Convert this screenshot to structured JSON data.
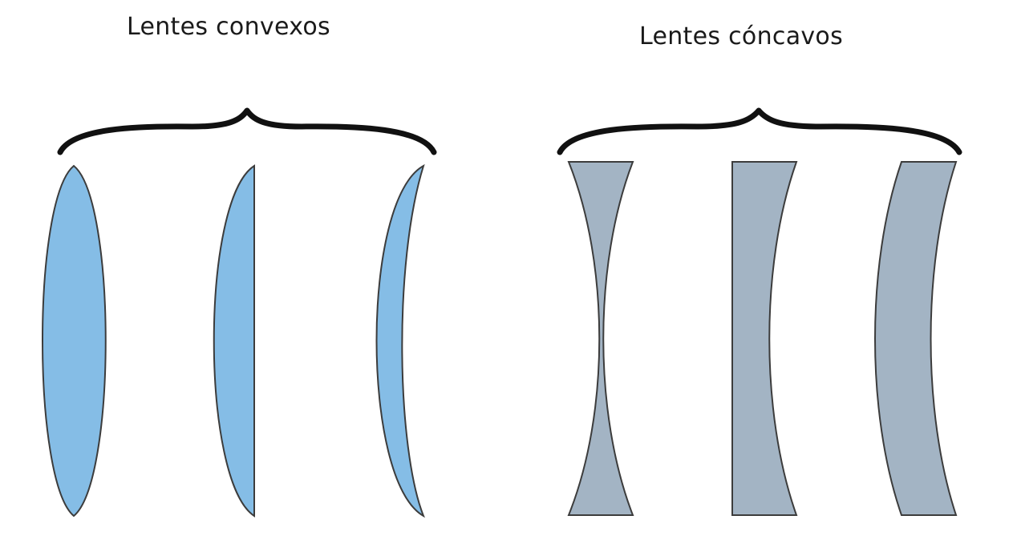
{
  "groups": {
    "convex": {
      "title": "Lentes convexos",
      "fill": "#85bde6",
      "lenses": [
        "biconvex-lens",
        "plano-convex-lens",
        "convex-meniscus-lens"
      ]
    },
    "concave": {
      "title": "Lentes cóncavos",
      "fill": "#a3b4c4",
      "lenses": [
        "biconcave-lens",
        "plano-concave-lens",
        "concave-meniscus-lens"
      ]
    }
  },
  "colors": {
    "outline": "#3c3c3c",
    "brace": "#111111",
    "background": "#ffffff"
  }
}
